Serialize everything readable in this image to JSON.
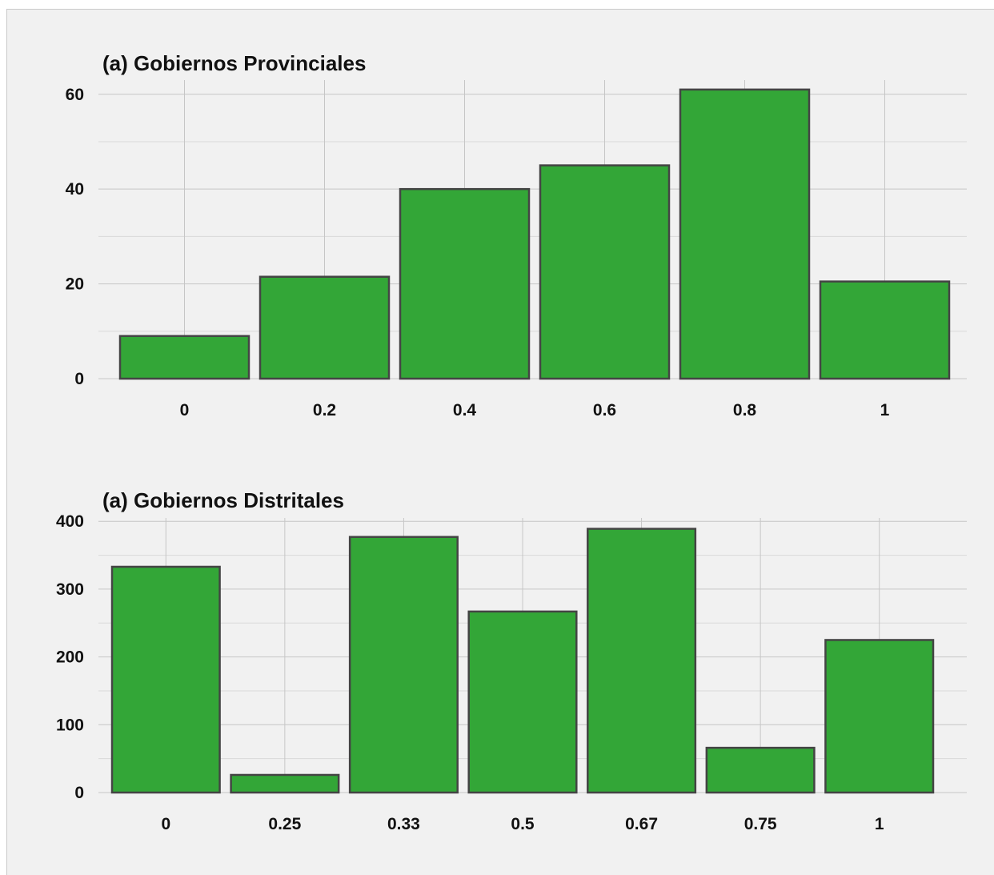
{
  "chart_data": [
    {
      "type": "bar",
      "title": "(a) Gobiernos Provinciales",
      "xlabel": "",
      "ylabel": "",
      "categories": [
        "0",
        "0.2",
        "0.4",
        "0.6",
        "0.8",
        "1"
      ],
      "values": [
        9,
        21.5,
        40,
        45,
        61,
        20.5
      ],
      "ylim": [
        0,
        63
      ],
      "yticks": [
        0,
        20,
        40,
        60
      ],
      "grid": true,
      "bar_color": "#33a637",
      "bar_edge_color": "#444444"
    },
    {
      "type": "bar",
      "title": "(a) Gobiernos Distritales",
      "xlabel": "",
      "ylabel": "",
      "categories": [
        "0",
        "0.25",
        "0.33",
        "0.5",
        "0.67",
        "0.75",
        "1"
      ],
      "values": [
        333,
        26,
        377,
        267,
        389,
        66,
        225
      ],
      "ylim": [
        0,
        405
      ],
      "yticks": [
        0,
        100,
        200,
        300,
        400
      ],
      "grid": true,
      "bar_color": "#33a637",
      "bar_edge_color": "#444444"
    }
  ]
}
